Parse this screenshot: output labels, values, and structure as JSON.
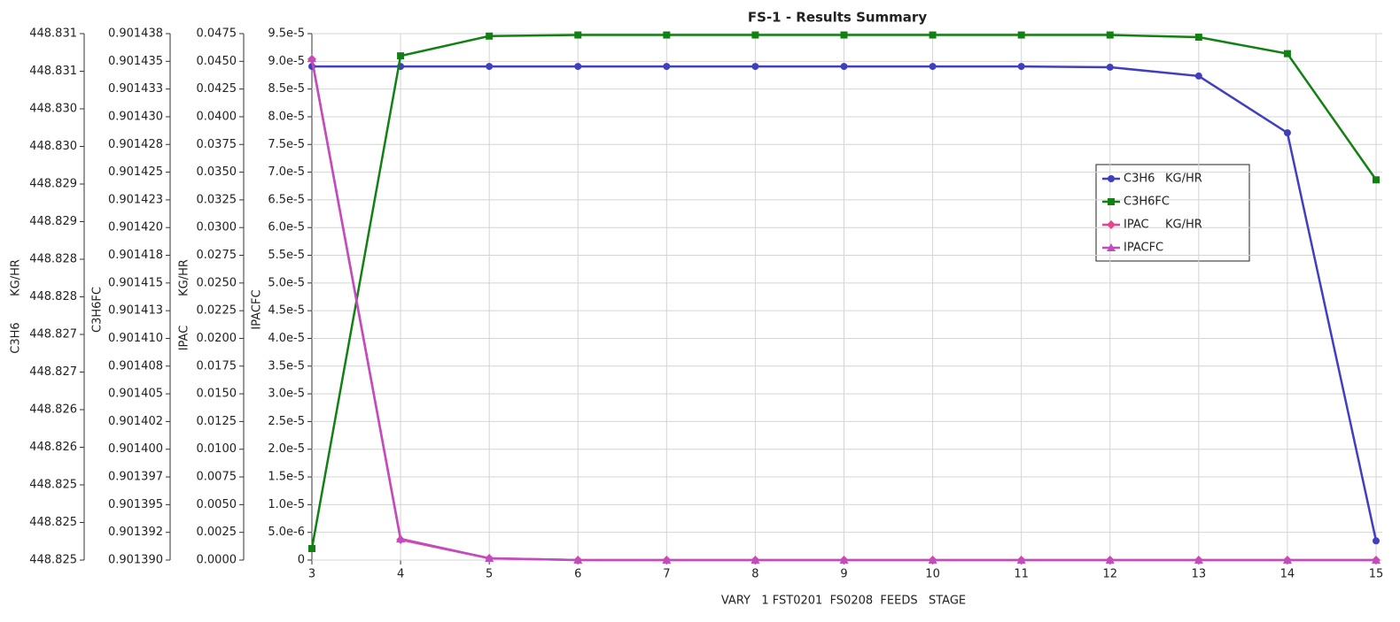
{
  "chart_data": {
    "type": "line",
    "title": "FS-1 - Results Summary",
    "xlabel": "VARY   1 FST0201  FS0208  FEEDS   STAGE",
    "x": [
      3,
      4,
      5,
      6,
      7,
      8,
      9,
      10,
      11,
      12,
      13,
      14,
      15
    ],
    "xlim": [
      3,
      15
    ],
    "xticks": [
      3,
      4,
      5,
      6,
      7,
      8,
      9,
      10,
      11,
      12,
      13,
      14,
      15
    ],
    "grid": true,
    "legend": "upper right",
    "axes": [
      {
        "label": "C3H6",
        "unit": "KG/HR",
        "ylim": [
          448.82452,
          448.8311
        ],
        "yticks": [
          {
            "value": 448.82452,
            "label": "448.825"
          },
          {
            "value": 448.82499,
            "label": "448.825"
          },
          {
            "value": 448.82546,
            "label": "448.825"
          },
          {
            "value": 448.82593,
            "label": "448.826"
          },
          {
            "value": 448.8264,
            "label": "448.826"
          },
          {
            "value": 448.82687,
            "label": "448.827"
          },
          {
            "value": 448.82734,
            "label": "448.827"
          },
          {
            "value": 448.82781,
            "label": "448.828"
          },
          {
            "value": 448.82828,
            "label": "448.828"
          },
          {
            "value": 448.82875,
            "label": "448.829"
          },
          {
            "value": 448.82922,
            "label": "448.829"
          },
          {
            "value": 448.82969,
            "label": "448.830"
          },
          {
            "value": 448.83016,
            "label": "448.830"
          },
          {
            "value": 448.83063,
            "label": "448.831"
          },
          {
            "value": 448.8311,
            "label": "448.831"
          }
        ]
      },
      {
        "label": "C3H6FC",
        "ylim": [
          0.90138985,
          0.901437825
        ],
        "yticks": [
          {
            "value": 0.90138985,
            "label": "0.901390"
          },
          {
            "value": 0.901392375,
            "label": "0.901392"
          },
          {
            "value": 0.9013949,
            "label": "0.901395"
          },
          {
            "value": 0.901397425,
            "label": "0.901397"
          },
          {
            "value": 0.90139995,
            "label": "0.901400"
          },
          {
            "value": 0.901402475,
            "label": "0.901402"
          },
          {
            "value": 0.901405,
            "label": "0.901405"
          },
          {
            "value": 0.901407525,
            "label": "0.901408"
          },
          {
            "value": 0.90141005,
            "label": "0.901410"
          },
          {
            "value": 0.901412575,
            "label": "0.901413"
          },
          {
            "value": 0.9014151,
            "label": "0.901415"
          },
          {
            "value": 0.901417625,
            "label": "0.901418"
          },
          {
            "value": 0.90142015,
            "label": "0.901420"
          },
          {
            "value": 0.901422675,
            "label": "0.901423"
          },
          {
            "value": 0.9014252,
            "label": "0.901425"
          },
          {
            "value": 0.901427725,
            "label": "0.901428"
          },
          {
            "value": 0.90143025,
            "label": "0.901430"
          },
          {
            "value": 0.901432775,
            "label": "0.901433"
          },
          {
            "value": 0.9014353,
            "label": "0.901435"
          },
          {
            "value": 0.901437825,
            "label": "0.901438"
          }
        ]
      },
      {
        "label": "IPAC",
        "unit": "KG/HR",
        "ylim": [
          0,
          0.0475
        ],
        "yticks": [
          {
            "value": 0,
            "label": "0.0000"
          },
          {
            "value": 0.0025,
            "label": "0.0025"
          },
          {
            "value": 0.005,
            "label": "0.0050"
          },
          {
            "value": 0.0075,
            "label": "0.0075"
          },
          {
            "value": 0.01,
            "label": "0.0100"
          },
          {
            "value": 0.0125,
            "label": "0.0125"
          },
          {
            "value": 0.015,
            "label": "0.0150"
          },
          {
            "value": 0.0175,
            "label": "0.0175"
          },
          {
            "value": 0.02,
            "label": "0.0200"
          },
          {
            "value": 0.0225,
            "label": "0.0225"
          },
          {
            "value": 0.025,
            "label": "0.0250"
          },
          {
            "value": 0.0275,
            "label": "0.0275"
          },
          {
            "value": 0.03,
            "label": "0.0300"
          },
          {
            "value": 0.0325,
            "label": "0.0325"
          },
          {
            "value": 0.035,
            "label": "0.0350"
          },
          {
            "value": 0.0375,
            "label": "0.0375"
          },
          {
            "value": 0.04,
            "label": "0.0400"
          },
          {
            "value": 0.0425,
            "label": "0.0425"
          },
          {
            "value": 0.045,
            "label": "0.0450"
          },
          {
            "value": 0.0475,
            "label": "0.0475"
          }
        ]
      },
      {
        "label": "IPACFC",
        "ylim": [
          0,
          9.5e-05
        ],
        "yticks": [
          0,
          {
            "value": 5e-06,
            "label": "5.0e-6"
          },
          {
            "value": 1e-05,
            "label": "1.0e-5"
          },
          {
            "value": 1.5e-05,
            "label": "1.5e-5"
          },
          {
            "value": 2e-05,
            "label": "2.0e-5"
          },
          {
            "value": 2.5e-05,
            "label": "2.5e-5"
          },
          {
            "value": 3e-05,
            "label": "3.0e-5"
          },
          {
            "value": 3.5e-05,
            "label": "3.5e-5"
          },
          {
            "value": 4e-05,
            "label": "4.0e-5"
          },
          {
            "value": 4.5e-05,
            "label": "4.5e-5"
          },
          {
            "value": 5e-05,
            "label": "5.0e-5"
          },
          {
            "value": 5.5e-05,
            "label": "5.5e-5"
          },
          {
            "value": 6e-05,
            "label": "6.0e-5"
          },
          {
            "value": 6.5e-05,
            "label": "6.5e-5"
          },
          {
            "value": 7e-05,
            "label": "7.0e-5"
          },
          {
            "value": 7.5e-05,
            "label": "7.5e-5"
          },
          {
            "value": 8e-05,
            "label": "8.0e-5"
          },
          {
            "value": 8.5e-05,
            "label": "8.5e-5"
          },
          {
            "value": 9e-05,
            "label": "9.0e-5"
          },
          {
            "value": 9.5e-05,
            "label": "9.5e-5"
          }
        ]
      }
    ],
    "series": [
      {
        "name": "C3H6",
        "unit": "KG/HR",
        "color": "#3f3fbf",
        "axis": 0,
        "values": [
          448.83069,
          448.83069,
          448.83069,
          448.83069,
          448.83069,
          448.83069,
          448.83069,
          448.83069,
          448.83069,
          448.83068,
          448.83057,
          448.82986,
          448.82476
        ]
      },
      {
        "name": "C3H6FC",
        "color": "#138013",
        "axis": 1,
        "values": [
          0.9013909,
          0.9014358,
          0.9014376,
          0.9014377,
          0.9014377,
          0.9014377,
          0.9014377,
          0.9014377,
          0.9014377,
          0.9014377,
          0.9014375,
          0.901436,
          0.9014245
        ]
      },
      {
        "name": "IPAC",
        "unit": "KG/HR",
        "color": "#e6458f",
        "axis": 2,
        "values": [
          0.04519,
          0.00184,
          0.00016,
          0,
          0,
          0,
          0,
          0,
          0,
          0,
          0,
          0,
          0
        ]
      },
      {
        "name": "IPACFC",
        "color": "#c04cc0",
        "axis": 3,
        "values": [
          9.05e-05,
          3.83e-06,
          3.2e-07,
          0,
          0,
          0,
          0,
          0,
          0,
          0,
          0,
          0,
          0
        ]
      }
    ]
  }
}
